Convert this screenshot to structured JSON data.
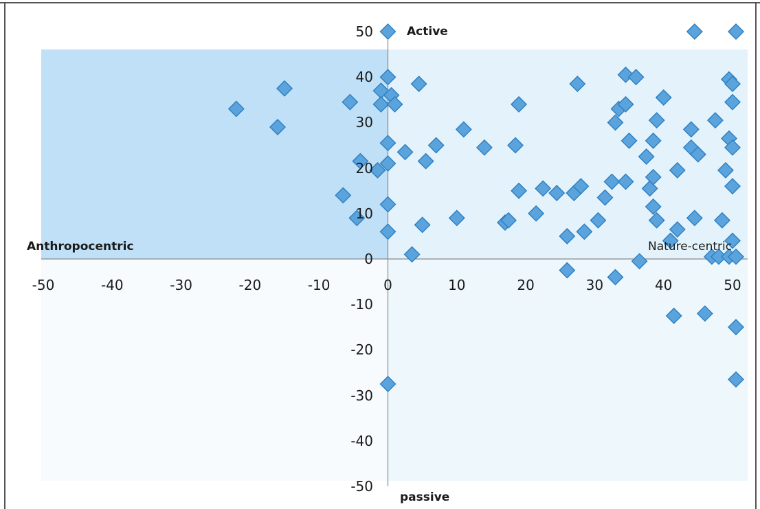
{
  "chart_data": {
    "type": "scatter",
    "title": "",
    "xlim": [
      -50,
      50
    ],
    "ylim": [
      -50,
      50
    ],
    "x_ticks": [
      "-50",
      "-40",
      "-30",
      "-20",
      "-10",
      "0",
      "10",
      "20",
      "30",
      "40",
      "50"
    ],
    "y_ticks": [
      "50",
      "40",
      "30",
      "20",
      "10",
      "0",
      "-10",
      "-20",
      "-30",
      "-40",
      "-50"
    ],
    "grid": false,
    "marker": "diamond",
    "colors": {
      "marker_fill": "#5aa3dc",
      "marker_edge": "#2f7fc1",
      "quadrant_upper_left": "#bfe0f6",
      "quadrant_upper_right": "#e4f3fb",
      "quadrant_lower_left": "#f7fbfd",
      "quadrant_lower_right": "#eef8fc"
    },
    "annotations": {
      "top": "Active",
      "bottom": "passive",
      "left": "Anthropocentric",
      "right": "Nature-centric"
    },
    "points": [
      [
        0,
        50
      ],
      [
        44.5,
        50
      ],
      [
        50.5,
        50
      ],
      [
        -22,
        33
      ],
      [
        -16,
        29
      ],
      [
        -15,
        37.5
      ],
      [
        -5.5,
        34.5
      ],
      [
        -1,
        37
      ],
      [
        0,
        40
      ],
      [
        0.5,
        36
      ],
      [
        -1,
        34
      ],
      [
        1,
        34
      ],
      [
        4.5,
        38.5
      ],
      [
        0,
        25.5
      ],
      [
        -4,
        21.5
      ],
      [
        -1.5,
        19.5
      ],
      [
        0,
        21
      ],
      [
        2.5,
        23.5
      ],
      [
        5.5,
        21.5
      ],
      [
        7,
        25
      ],
      [
        11,
        28.5
      ],
      [
        14,
        24.5
      ],
      [
        19,
        34
      ],
      [
        18.5,
        25
      ],
      [
        19,
        15
      ],
      [
        -6.5,
        14
      ],
      [
        -4.5,
        9
      ],
      [
        0,
        12
      ],
      [
        0,
        6
      ],
      [
        3.5,
        1
      ],
      [
        5,
        7.5
      ],
      [
        10,
        9
      ],
      [
        17,
        8
      ],
      [
        17.5,
        8.5
      ],
      [
        21.5,
        10
      ],
      [
        22.5,
        15.5
      ],
      [
        24.5,
        14.5
      ],
      [
        26,
        5
      ],
      [
        27,
        14.5
      ],
      [
        28,
        16
      ],
      [
        28.5,
        6
      ],
      [
        27.5,
        38.5
      ],
      [
        30.5,
        8.5
      ],
      [
        31.5,
        13.5
      ],
      [
        32.5,
        17
      ],
      [
        33,
        30
      ],
      [
        33.5,
        33
      ],
      [
        34.5,
        34
      ],
      [
        34.5,
        17
      ],
      [
        34.5,
        40.5
      ],
      [
        35,
        26
      ],
      [
        36,
        40
      ],
      [
        37.5,
        22.5
      ],
      [
        38,
        15.5
      ],
      [
        38.5,
        11.5
      ],
      [
        38.5,
        26
      ],
      [
        39,
        30.5
      ],
      [
        38.5,
        18
      ],
      [
        39,
        8.5
      ],
      [
        40,
        35.5
      ],
      [
        41,
        4
      ],
      [
        42,
        19.5
      ],
      [
        42,
        6.5
      ],
      [
        44,
        28.5
      ],
      [
        44,
        24.5
      ],
      [
        44.5,
        9
      ],
      [
        45,
        23
      ],
      [
        47.5,
        30.5
      ],
      [
        48.5,
        8.5
      ],
      [
        49,
        19.5
      ],
      [
        49.5,
        26.5
      ],
      [
        49.5,
        39.5
      ],
      [
        50,
        38.5
      ],
      [
        50,
        34.5
      ],
      [
        50,
        24.5
      ],
      [
        50,
        16
      ],
      [
        50,
        4
      ],
      [
        36.5,
        -0.5
      ],
      [
        47,
        0.5
      ],
      [
        48,
        0.5
      ],
      [
        49.5,
        0.5
      ],
      [
        50.5,
        0.5
      ],
      [
        33,
        -4
      ],
      [
        26,
        -2.5
      ],
      [
        41.5,
        -12.5
      ],
      [
        46,
        -12
      ],
      [
        50.5,
        -15
      ],
      [
        50.5,
        -26.5
      ],
      [
        0,
        -27.5
      ]
    ]
  }
}
